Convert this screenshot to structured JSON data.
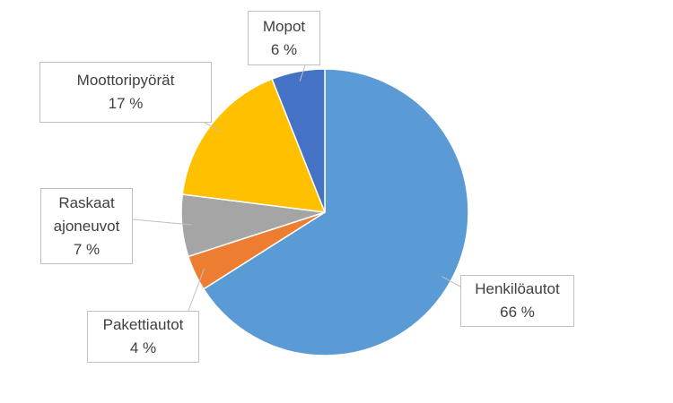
{
  "chart_data": {
    "type": "pie",
    "categories": [
      "Henkilöautot",
      "Pakettiautot",
      "Raskaat ajoneuvot",
      "Moottoripyörät",
      "Mopot"
    ],
    "values": [
      66,
      4,
      7,
      17,
      6
    ],
    "value_labels": [
      "66 %",
      "4 %",
      "7 %",
      "17 %",
      "6 %"
    ],
    "colors": [
      "#5b9bd5",
      "#ed7d31",
      "#a5a5a5",
      "#ffc000",
      "#4472c4"
    ]
  }
}
